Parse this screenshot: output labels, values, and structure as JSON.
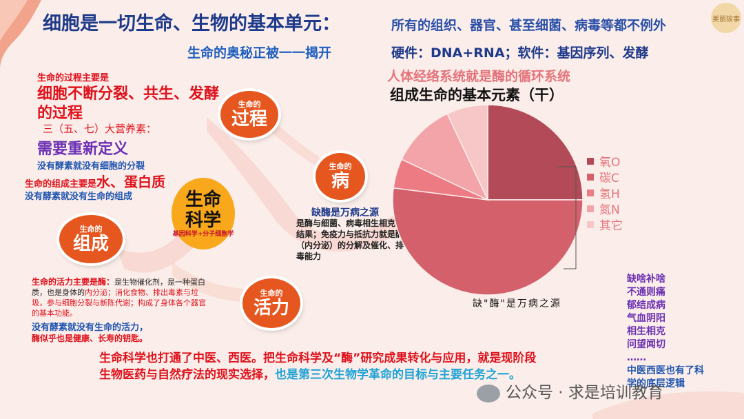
{
  "header": {
    "title_main": "细胞是一切生命、生物的基本单元：",
    "title_sub": "所有的组织、器官、甚至细菌、病毒等都不例外",
    "line2_left": "生命的奥秘正被一一揭开",
    "line2_right": "硬件：DNA+RNA；软件：基因序列、发酵",
    "stamp": "美丽故事"
  },
  "left": {
    "process_intro": "生命的过程主要是",
    "process_main_1": "细胞不断分裂、共生、发酵",
    "process_main_2": "的过程",
    "nutrients": "三（五、七）大营养素：",
    "redefine": "需要重新定义",
    "no_enzyme_cell": "没有酵素就没有细胞的分裂",
    "composition_prefix": "生命的组成主要是",
    "composition_main": "水、蛋白质",
    "no_enzyme_comp": "没有酵素就没有生命的组成",
    "vitality_prefix": "生命的活力主要是酶：",
    "vitality_desc_a": "是生物催化剂，是一种蛋白质，也是身体的",
    "vitality_desc_b": "内分泌",
    "vitality_desc_c": "；消化食物、排出毒素与垃圾，参与细胞分裂与新陈代谢；构成了身体各个器官的基本功能。",
    "vitality_no_enzyme": "没有酵素就没有生命的活力，",
    "vitality_key": "酶似乎也是健康、长寿的钥匙。"
  },
  "circles": {
    "process": {
      "small": "生命的",
      "big": "过程"
    },
    "disease": {
      "small": "生命的",
      "big": "病"
    },
    "composition": {
      "small": "生命的",
      "big": "组成"
    },
    "vitality": {
      "small": "生命的",
      "big": "活力"
    },
    "core": {
      "big1": "生命",
      "big2": "科学",
      "small": "基因科学+分子细胞学"
    }
  },
  "disease": {
    "heading": "缺酶是万病之源",
    "body": "是酶与细菌、病毒相生相克的结果；免疫力与抵抗力就是酶（内分泌）的分解及催化、排毒能力"
  },
  "pie": {
    "title1": "人体经络系统就是酶的循环系统",
    "title2": "组成生命的基本元素（干）",
    "caption": "缺\"酶\"是万病之源"
  },
  "chart_data": {
    "type": "pie",
    "title": "组成生命的基本元素（干）",
    "categories": [
      "氧O",
      "碳C",
      "氢H",
      "氮N",
      "其它"
    ],
    "values": [
      25,
      52,
      5,
      11,
      7
    ],
    "colors": [
      "#b24a57",
      "#d4606b",
      "#ec7b83",
      "#f2a4a8",
      "#f7c6c6"
    ]
  },
  "side_list": {
    "items": [
      "缺啥补啥",
      "不通则痛",
      "郁结成病",
      "气血阴阳",
      "相生相克",
      "问望闻切",
      "……"
    ],
    "footer": "中医西医也有了科学的底层逻辑"
  },
  "bottom": {
    "red_text": "生命科学也打通了中医、西医。把生命科学及“酶”研究成果转化与应用，就是现阶段生物医药与自然疗法的现实选择，",
    "blue_text": "也是第三次生物学革命的目标与主要任务之一。"
  },
  "watermark": "公众号 · 求是培训教育"
}
